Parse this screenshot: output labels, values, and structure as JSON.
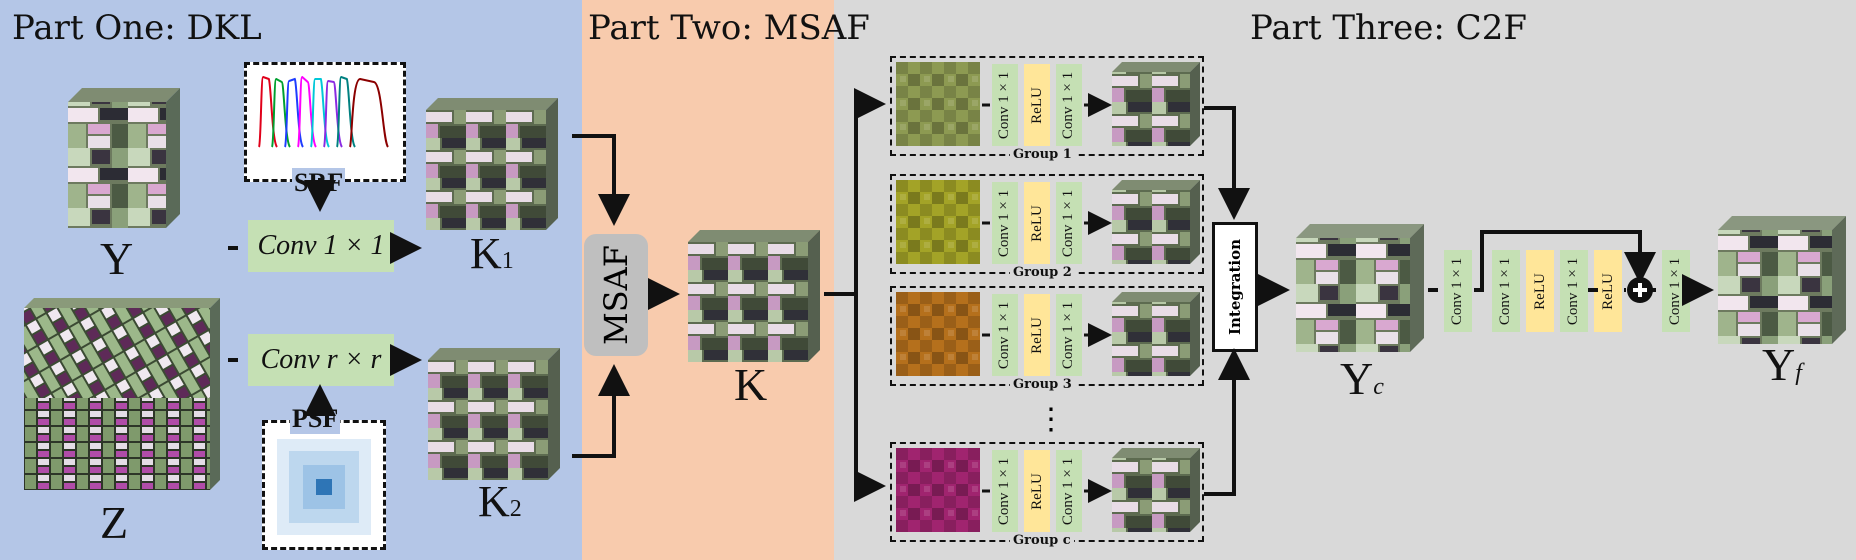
{
  "panels": {
    "part_one_title": "Part One: DKL",
    "part_two_title": "Part Two: MSAF",
    "part_three_title": "Part Three: C2F"
  },
  "part_one": {
    "y_label": "Y",
    "z_label": "Z",
    "srf_label": "SRF",
    "psf_label": "PSF",
    "conv1_label": "Conv 1 × 1",
    "convr_label": "Conv r × r",
    "k1_label": "K",
    "k1_sub": "1",
    "k2_label": "K",
    "k2_sub": "2"
  },
  "part_two": {
    "msaf_label": "MSAF",
    "k_label": "K"
  },
  "part_three": {
    "conv_small": "Conv 1 × 1",
    "relu": "ReLU",
    "groups": [
      {
        "label": "Group 1",
        "tint": "#8d9a52"
      },
      {
        "label": "Group 2",
        "tint": "#a3a327"
      },
      {
        "label": "Group 3",
        "tint": "#b5701c"
      },
      {
        "label": "Group c",
        "tint": "#a0246f"
      }
    ],
    "dots": "⋮",
    "integration_label": "Integration",
    "yc_label": "Y",
    "yc_sub": "c",
    "yf_label": "Y",
    "yf_sub": "f"
  },
  "colors": {
    "part_one_bg": "#b4c6e7",
    "part_two_bg": "#f8cbad",
    "part_three_bg": "#d9d9d9",
    "conv_green": "#c5e0b4",
    "relu_yellow": "#ffe699",
    "srf_curves": [
      "#e0001a",
      "#00a030",
      "#1e3cff",
      "#ff00ff",
      "#00c8d8",
      "#8a2be2",
      "#008080",
      "#8b0000"
    ]
  }
}
